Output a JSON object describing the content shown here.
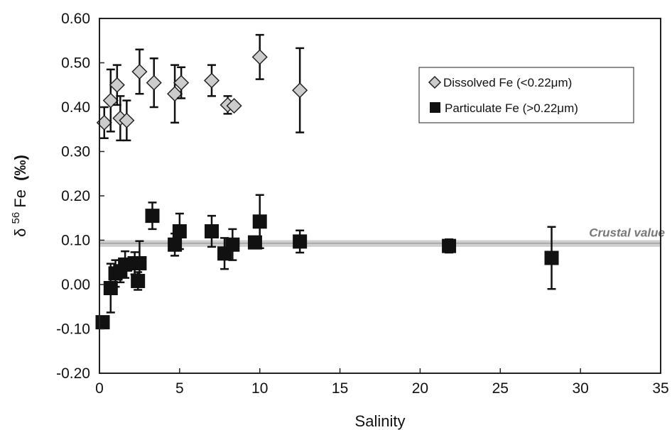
{
  "chart_data": {
    "type": "scatter",
    "xlabel": "Salinity",
    "ylabel_base": "δ",
    "ylabel_sup": "56",
    "ylabel_fe": "Fe",
    "ylabel_unit": "(‰)",
    "xlim": [
      0,
      35
    ],
    "ylim": [
      -0.2,
      0.6
    ],
    "x_ticks": [
      0,
      5,
      10,
      15,
      20,
      25,
      30,
      35
    ],
    "y_ticks": [
      -0.2,
      -0.1,
      0.0,
      0.1,
      0.2,
      0.3,
      0.4,
      0.5,
      0.6
    ],
    "x_tick_labels": [
      "0",
      "5",
      "10",
      "15",
      "20",
      "25",
      "30",
      "35"
    ],
    "y_tick_labels": [
      "-0.20",
      "-0.10",
      "0.00",
      "0.10",
      "0.20",
      "0.30",
      "0.40",
      "0.50",
      "0.60"
    ],
    "grid": false,
    "legend_position": "top-right",
    "crustal_value": {
      "label": "Crustal value",
      "y": 0.093,
      "band": [
        0.085,
        0.1
      ],
      "color": "#bbbbbb"
    },
    "series": [
      {
        "name": "Dissolved Fe (<0.22μm)",
        "marker": "diamond",
        "fill": "#cccccc",
        "stroke": "#222222",
        "points": [
          {
            "x": 0.3,
            "y": 0.365,
            "err": 0.035
          },
          {
            "x": 0.7,
            "y": 0.415,
            "err": 0.07
          },
          {
            "x": 1.1,
            "y": 0.45,
            "err": 0.045
          },
          {
            "x": 1.3,
            "y": 0.375,
            "err": 0.05
          },
          {
            "x": 1.7,
            "y": 0.37,
            "err": 0.045
          },
          {
            "x": 2.5,
            "y": 0.48,
            "err": 0.05
          },
          {
            "x": 3.4,
            "y": 0.455,
            "err": 0.055
          },
          {
            "x": 4.7,
            "y": 0.43,
            "err": 0.065
          },
          {
            "x": 5.1,
            "y": 0.455,
            "err": 0.035
          },
          {
            "x": 7.0,
            "y": 0.46,
            "err": 0.035
          },
          {
            "x": 8.0,
            "y": 0.405,
            "err": 0.02
          },
          {
            "x": 8.4,
            "y": 0.403,
            "err": 0
          },
          {
            "x": 10.0,
            "y": 0.513,
            "err": 0.05
          },
          {
            "x": 12.5,
            "y": 0.438,
            "err": 0.095
          }
        ]
      },
      {
        "name": "Particulate Fe (>0.22μm)",
        "marker": "square",
        "fill": "#111111",
        "stroke": "#111111",
        "points": [
          {
            "x": 0.2,
            "y": -0.085,
            "err": 0.01
          },
          {
            "x": 0.7,
            "y": -0.008,
            "err": 0.055
          },
          {
            "x": 1.0,
            "y": 0.025,
            "err": 0.03
          },
          {
            "x": 1.3,
            "y": 0.03,
            "err": 0.025
          },
          {
            "x": 1.6,
            "y": 0.045,
            "err": 0.03
          },
          {
            "x": 2.2,
            "y": 0.048,
            "err": 0.025
          },
          {
            "x": 2.4,
            "y": 0.008,
            "err": 0.02
          },
          {
            "x": 2.5,
            "y": 0.048,
            "err": 0.05
          },
          {
            "x": 3.3,
            "y": 0.155,
            "err": 0.03
          },
          {
            "x": 4.7,
            "y": 0.09,
            "err": 0.025
          },
          {
            "x": 5.0,
            "y": 0.12,
            "err": 0.04
          },
          {
            "x": 7.0,
            "y": 0.12,
            "err": 0.035
          },
          {
            "x": 7.8,
            "y": 0.07,
            "err": 0.035
          },
          {
            "x": 8.3,
            "y": 0.09,
            "err": 0.035
          },
          {
            "x": 9.7,
            "y": 0.095,
            "err": 0.01
          },
          {
            "x": 10.0,
            "y": 0.142,
            "err": 0.06
          },
          {
            "x": 12.5,
            "y": 0.097,
            "err": 0.025
          },
          {
            "x": 21.8,
            "y": 0.087,
            "err": 0.015
          },
          {
            "x": 28.2,
            "y": 0.06,
            "err": 0.07
          }
        ]
      }
    ]
  }
}
